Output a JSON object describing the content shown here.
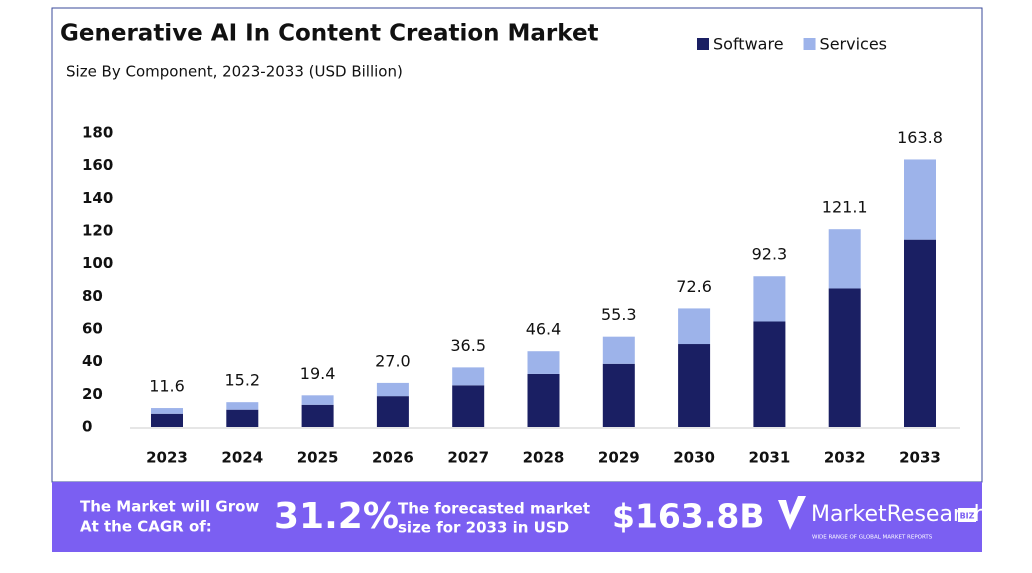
{
  "chart_data": {
    "type": "stacked_bar",
    "title": "Generative AI In Content Creation Market",
    "subtitle": "Size By Component, 2023-2033 (USD Billion)",
    "categories": [
      "2023",
      "2024",
      "2025",
      "2026",
      "2027",
      "2028",
      "2029",
      "2030",
      "2031",
      "2032",
      "2033"
    ],
    "series": [
      {
        "name": "Software",
        "color": "#1a1f63",
        "values": [
          8.1,
          10.6,
          13.6,
          18.9,
          25.5,
          32.5,
          38.7,
          50.8,
          64.6,
          84.8,
          114.7
        ]
      },
      {
        "name": "Services",
        "color": "#9db3ea",
        "values": [
          3.5,
          4.6,
          5.8,
          8.1,
          11.0,
          13.9,
          16.6,
          21.8,
          27.7,
          36.3,
          49.1
        ]
      }
    ],
    "total_labels": [
      "11.6",
      "15.2",
      "19.4",
      "27.0",
      "36.5",
      "46.4",
      "55.3",
      "72.6",
      "92.3",
      "121.1",
      "163.8"
    ],
    "ylim": [
      0,
      180
    ],
    "yticks": [
      0,
      20,
      40,
      60,
      80,
      100,
      120,
      140,
      160,
      180
    ],
    "grid": false,
    "legend": "top-right"
  },
  "banner": {
    "cagr_text": [
      "The Market will Grow",
      "At the CAGR of:"
    ],
    "cagr_value": "31.2%",
    "forecast_text": [
      "The forecasted market",
      "size for 2033 in USD"
    ],
    "forecast_value": "$163.8B",
    "logo": "MarketResearch",
    "logo_badge": "BIZ",
    "logo_tagline": "WIDE RANGE OF GLOBAL MARKET REPORTS"
  }
}
